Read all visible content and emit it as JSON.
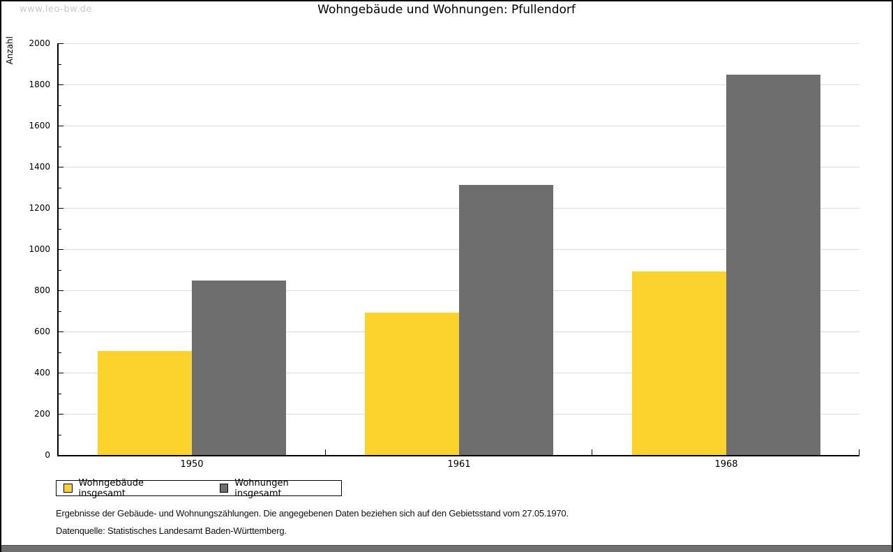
{
  "watermark": "www.leo-bw.de",
  "title": "Wohngebäude und Wohnungen: Pfullendorf",
  "y_axis_label": "Anzahl",
  "legend": {
    "items": [
      {
        "label": "Wohngebäude insgesamt",
        "color": "#FCD32D"
      },
      {
        "label": "Wohnungen insgesamt",
        "color": "#6E6E6E"
      }
    ]
  },
  "footer": {
    "line1": "Ergebnisse der Gebäude- und Wohnungszählungen. Die angegebenen Daten beziehen sich auf den Gebietsstand vom 27.05.1970.",
    "line2": "Datenquelle: Statistisches Landesamt Baden-Württemberg."
  },
  "colors": {
    "bar_yellow": "#FCD32D",
    "bar_gray": "#6E6E6E",
    "gridline": "#DCDCDC",
    "axis": "#000000",
    "watermark_text": "#C9C9C9",
    "bottom_bar": "#6F6F6F"
  },
  "chart_data": {
    "type": "bar",
    "categories": [
      "1950",
      "1961",
      "1968"
    ],
    "series": [
      {
        "name": "Wohngebäude insgesamt",
        "color": "#FCD32D",
        "values": [
          505,
          690,
          892
        ]
      },
      {
        "name": "Wohnungen insgesamt",
        "color": "#6E6E6E",
        "values": [
          848,
          1311,
          1846
        ]
      }
    ],
    "title": "Wohngebäude und Wohnungen: Pfullendorf",
    "xlabel": "",
    "ylabel": "Anzahl",
    "ylim": [
      0,
      2000
    ],
    "y_major_step": 200,
    "y_minor_step": 100,
    "grid": true,
    "legend_position": "below-left"
  }
}
